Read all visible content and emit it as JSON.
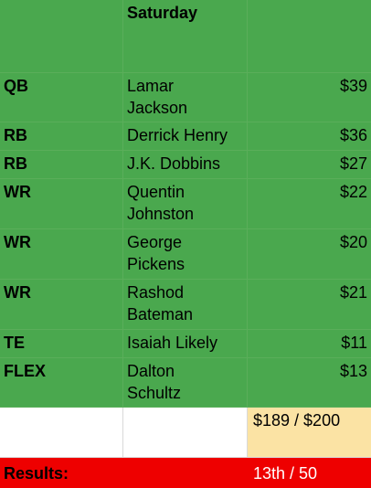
{
  "header": {
    "col1": "",
    "col2": "Saturday",
    "col3": ""
  },
  "rows": [
    {
      "position": "QB",
      "player_line1": "Lamar",
      "player_line2": "Jackson",
      "salary": "$39"
    },
    {
      "position": "RB",
      "player_line1": "Derrick Henry",
      "player_line2": "",
      "salary": "$36"
    },
    {
      "position": "RB",
      "player_line1": "J.K. Dobbins",
      "player_line2": "",
      "salary": "$27"
    },
    {
      "position": "WR",
      "player_line1": "Quentin",
      "player_line2": "Johnston",
      "salary": "$22"
    },
    {
      "position": "WR",
      "player_line1": "George",
      "player_line2": "Pickens",
      "salary": "$20"
    },
    {
      "position": "WR",
      "player_line1": "Rashod",
      "player_line2": "Bateman",
      "salary": "$21"
    },
    {
      "position": "TE",
      "player_line1": "Isaiah Likely",
      "player_line2": "",
      "salary": "$11"
    },
    {
      "position": "FLEX",
      "player_line1": "Dalton",
      "player_line2": "Schultz",
      "salary": "$13"
    }
  ],
  "total": {
    "col1": "",
    "col2": "",
    "budget": "$189 / $200"
  },
  "results": {
    "label": "Results:",
    "col2": "",
    "value": "13th / 50"
  },
  "colors": {
    "green": "#4aa84e",
    "budget_fill": "#fbe3a4",
    "results_red": "#ee0000"
  }
}
